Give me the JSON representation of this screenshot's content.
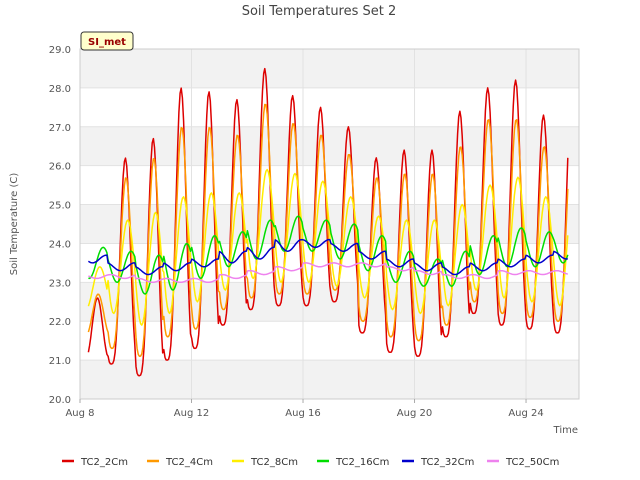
{
  "chart_data": {
    "type": "line",
    "title": "Soil Temperatures Set 2",
    "xlabel": "Time",
    "ylabel": "Soil Temperature (C)",
    "ylim": [
      20.0,
      29.0
    ],
    "yticks": [
      "20.0",
      "21.0",
      "22.0",
      "23.0",
      "24.0",
      "25.0",
      "26.0",
      "27.0",
      "28.0",
      "29.0"
    ],
    "xlim_days": [
      8.0,
      25.9
    ],
    "xticks": [
      {
        "day": 8,
        "label": "Aug 8"
      },
      {
        "day": 12,
        "label": "Aug 12"
      },
      {
        "day": 16,
        "label": "Aug 16"
      },
      {
        "day": 20,
        "label": "Aug 20"
      },
      {
        "day": 24,
        "label": "Aug 24"
      }
    ],
    "grid": true,
    "legend_position": "bottom",
    "annotation": "SI_met",
    "x_start_day": 8.3,
    "x_end_day": 25.5,
    "samples_per_day": 24,
    "series": [
      {
        "name": "TC2_2Cm",
        "color": "#dd0000",
        "daily_max": [
          22.6,
          26.2,
          26.7,
          28.0,
          27.9,
          27.7,
          28.5,
          27.8,
          27.5,
          27.0,
          26.2,
          26.4,
          26.4,
          27.4,
          28.0,
          28.2,
          27.3,
          27.5
        ],
        "daily_min": [
          21.0,
          20.9,
          20.6,
          21.0,
          21.3,
          21.9,
          22.3,
          22.4,
          22.4,
          22.5,
          21.7,
          21.2,
          21.1,
          21.6,
          22.2,
          21.9,
          21.8,
          21.7
        ],
        "phase": 0.625,
        "sharp": 1.6
      },
      {
        "name": "TC2_4Cm",
        "color": "#ff9900",
        "daily_max": [
          22.7,
          25.7,
          26.2,
          27.0,
          27.0,
          26.8,
          27.6,
          27.1,
          26.8,
          26.3,
          25.7,
          25.8,
          25.8,
          26.5,
          27.2,
          27.2,
          26.5,
          26.7
        ],
        "daily_min": [
          21.6,
          21.3,
          21.1,
          21.6,
          21.8,
          22.3,
          22.6,
          22.7,
          22.7,
          22.8,
          22.0,
          21.6,
          21.5,
          21.9,
          22.5,
          22.2,
          22.1,
          22.0
        ],
        "phase": 0.65,
        "sharp": 1.4
      },
      {
        "name": "TC2_8Cm",
        "color": "#ffee00",
        "daily_max": [
          23.4,
          24.6,
          24.8,
          25.2,
          25.3,
          25.3,
          25.9,
          25.8,
          25.6,
          25.2,
          24.7,
          24.6,
          24.6,
          25.0,
          25.5,
          25.7,
          25.2,
          25.3
        ],
        "daily_min": [
          22.3,
          22.2,
          21.9,
          22.2,
          22.5,
          22.8,
          23.1,
          23.0,
          23.0,
          22.9,
          22.6,
          22.3,
          22.2,
          22.4,
          22.8,
          22.6,
          22.5,
          22.4
        ],
        "phase": 0.71,
        "sharp": 1.0
      },
      {
        "name": "TC2_16Cm",
        "color": "#00dd00",
        "daily_max": [
          23.9,
          23.8,
          23.7,
          24.0,
          24.2,
          24.3,
          24.6,
          24.7,
          24.6,
          24.5,
          24.2,
          23.8,
          23.6,
          23.8,
          24.2,
          24.4,
          24.3,
          24.3
        ],
        "daily_min": [
          23.1,
          23.0,
          22.7,
          22.8,
          23.1,
          23.4,
          23.6,
          23.8,
          23.8,
          23.6,
          23.3,
          23.0,
          22.9,
          22.9,
          23.2,
          23.4,
          23.4,
          23.5
        ],
        "phase": 0.83,
        "sharp": 1.0
      },
      {
        "name": "TC2_32Cm",
        "color": "#0000cc",
        "daily_max": [
          23.7,
          23.5,
          23.4,
          23.5,
          23.6,
          23.8,
          23.9,
          24.1,
          24.1,
          24.0,
          23.8,
          23.6,
          23.5,
          23.4,
          23.5,
          23.6,
          23.7,
          23.8
        ],
        "daily_min": [
          23.5,
          23.3,
          23.2,
          23.3,
          23.4,
          23.5,
          23.6,
          23.8,
          23.9,
          23.8,
          23.6,
          23.4,
          23.3,
          23.2,
          23.3,
          23.4,
          23.5,
          23.6
        ],
        "phase": 0.95,
        "sharp": 1.0
      },
      {
        "name": "TC2_50Cm",
        "color": "#ee82ee",
        "daily_max": [
          23.2,
          23.2,
          23.1,
          23.1,
          23.1,
          23.2,
          23.3,
          23.4,
          23.5,
          23.5,
          23.5,
          23.4,
          23.3,
          23.2,
          23.2,
          23.3,
          23.3,
          23.3
        ],
        "daily_min": [
          23.1,
          23.1,
          23.0,
          23.0,
          23.0,
          23.1,
          23.2,
          23.3,
          23.4,
          23.4,
          23.4,
          23.3,
          23.2,
          23.1,
          23.1,
          23.2,
          23.2,
          23.2
        ],
        "phase": 0.1,
        "sharp": 1.0
      }
    ]
  }
}
